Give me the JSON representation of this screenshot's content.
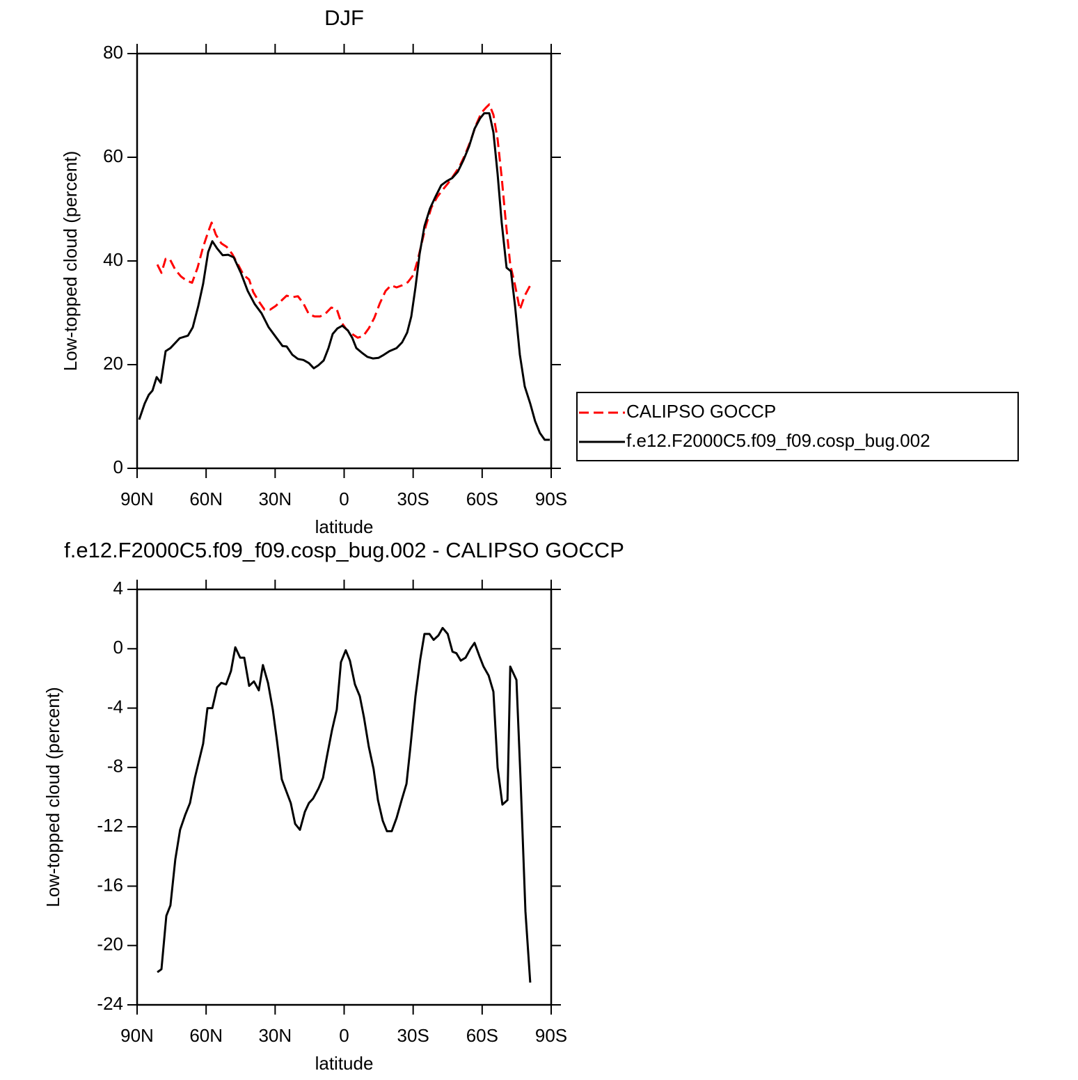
{
  "chart_data": [
    {
      "type": "line",
      "title": "DJF",
      "xlabel": "latitude",
      "ylabel": "Low-topped cloud (percent)",
      "xlim": [
        90,
        -90
      ],
      "xticks": [
        {
          "value": 90,
          "label": "90N"
        },
        {
          "value": 60,
          "label": "60N"
        },
        {
          "value": 30,
          "label": "30N"
        },
        0,
        {
          "value": -30,
          "label": "30S"
        },
        {
          "value": -60,
          "label": "60S"
        },
        {
          "value": -90,
          "label": "90S"
        }
      ],
      "ylim": [
        0,
        80
      ],
      "yticks": [
        0,
        20,
        40,
        60,
        80
      ],
      "legend": "right",
      "series": [
        {
          "name": "CALIPSO GOCCP",
          "color": "#ff0000",
          "line_style": "dashed",
          "x": [
            81.2,
            79.4,
            77.6,
            75.8,
            73.4,
            70.9,
            68.5,
            66.1,
            63.7,
            61.3,
            59.1,
            57.6,
            55.8,
            53.4,
            51.0,
            48.6,
            46.1,
            43.7,
            41.3,
            39.5,
            37.1,
            34.6,
            32.2,
            29.8,
            27.4,
            25.0,
            22.5,
            20.1,
            17.7,
            15.3,
            12.9,
            10.4,
            8.0,
            5.6,
            3.2,
            1.4,
            -1.0,
            -3.5,
            -5.9,
            -8.3,
            -10.7,
            -13.1,
            -15.5,
            -18.0,
            -20.4,
            -22.8,
            -25.2,
            -27.7,
            -30.1,
            -31.9,
            -33.7,
            -35.5,
            -37.9,
            -40.4,
            -42.8,
            -45.2,
            -47.6,
            -50.0,
            -52.5,
            -54.9,
            -57.3,
            -59.7,
            -61.5,
            -63.1,
            -64.9,
            -66.7,
            -68.5,
            -70.3,
            -72.2,
            -74.3,
            -76.4,
            -78.5,
            -80.9
          ],
          "values": [
            39.3,
            37.7,
            40.4,
            40.4,
            38.3,
            37.0,
            36.2,
            35.8,
            38.7,
            42.7,
            45.6,
            47.4,
            45.1,
            43.4,
            42.7,
            41.3,
            39.3,
            37.3,
            36.4,
            34.0,
            32.2,
            30.6,
            30.6,
            31.3,
            32.3,
            33.3,
            33.0,
            33.2,
            31.8,
            29.7,
            29.3,
            29.3,
            29.9,
            31.0,
            30.7,
            28.3,
            26.8,
            25.9,
            25.2,
            25.5,
            27.0,
            29.0,
            31.8,
            34.2,
            35.3,
            34.9,
            35.3,
            35.9,
            37.3,
            40.0,
            43.4,
            46.7,
            50.3,
            52.3,
            53.7,
            55.0,
            56.5,
            58.1,
            60.4,
            63.1,
            66.2,
            68.6,
            69.5,
            70.2,
            68.2,
            63.5,
            56.1,
            47.4,
            39.3,
            35.3,
            30.6,
            33.3,
            35.3
          ]
        },
        {
          "name": "f.e12.F2000C5.f09_f09.cosp_bug.002",
          "color": "#000000",
          "line_style": "solid",
          "x": [
            89.1,
            86.7,
            84.9,
            83.3,
            81.5,
            79.7,
            77.6,
            75.5,
            71.5,
            67.9,
            65.8,
            63.4,
            61.3,
            59.1,
            57.3,
            55.2,
            52.8,
            50.4,
            48.0,
            44.9,
            41.9,
            38.9,
            35.9,
            32.8,
            29.8,
            26.8,
            25.0,
            22.5,
            20.1,
            17.7,
            15.3,
            13.2,
            11.1,
            8.9,
            6.8,
            5.0,
            2.9,
            0.8,
            -1.6,
            -3.5,
            -5.3,
            -7.7,
            -10.1,
            -12.5,
            -14.9,
            -17.3,
            -19.7,
            -22.8,
            -25.2,
            -27.4,
            -29.2,
            -31.0,
            -32.8,
            -34.9,
            -37.3,
            -39.8,
            -42.2,
            -44.6,
            -47.0,
            -49.4,
            -51.9,
            -54.3,
            -56.7,
            -59.1,
            -60.9,
            -63.1,
            -64.9,
            -66.7,
            -68.5,
            -70.6,
            -72.5,
            -74.3,
            -76.4,
            -78.5,
            -80.9,
            -83.0,
            -85.1,
            -87.2,
            -89.4
          ],
          "values": [
            9.4,
            12.5,
            14.2,
            15.0,
            17.6,
            16.5,
            22.6,
            23.2,
            25.1,
            25.6,
            27.2,
            31.3,
            35.6,
            41.7,
            43.8,
            42.4,
            41.1,
            41.2,
            40.7,
            37.7,
            34.2,
            31.7,
            29.9,
            27.2,
            25.4,
            23.6,
            23.5,
            21.9,
            21.1,
            20.9,
            20.3,
            19.3,
            19.9,
            20.8,
            23.2,
            25.9,
            27.0,
            27.5,
            26.6,
            25.2,
            23.2,
            22.3,
            21.5,
            21.2,
            21.3,
            21.9,
            22.6,
            23.2,
            24.3,
            26.2,
            29.3,
            34.9,
            41.3,
            46.7,
            50.1,
            52.5,
            54.6,
            55.4,
            56.0,
            57.2,
            59.5,
            62.1,
            65.5,
            67.5,
            68.5,
            68.5,
            64.8,
            56.8,
            47.4,
            38.7,
            38.0,
            31.3,
            21.9,
            15.8,
            12.5,
            9.1,
            6.8,
            5.5,
            5.5
          ]
        }
      ]
    },
    {
      "type": "line",
      "title": "f.e12.F2000C5.f09_f09.cosp_bug.002 - CALIPSO GOCCP",
      "xlabel": "latitude",
      "ylabel": "Low-topped cloud (percent)",
      "xlim": [
        90,
        -90
      ],
      "xticks": [
        {
          "value": 90,
          "label": "90N"
        },
        {
          "value": 60,
          "label": "60N"
        },
        {
          "value": 30,
          "label": "30N"
        },
        0,
        {
          "value": -30,
          "label": "30S"
        },
        {
          "value": -60,
          "label": "60S"
        },
        {
          "value": -90,
          "label": "90S"
        }
      ],
      "ylim": [
        -24,
        4
      ],
      "yticks": [
        -24,
        -20,
        -16,
        -12,
        -8,
        -4,
        0,
        4
      ],
      "series": [
        {
          "color": "#000000",
          "line_style": "solid",
          "x": [
            81.2,
            79.4,
            77.3,
            75.5,
            73.4,
            71.3,
            69.1,
            67.0,
            64.9,
            61.3,
            59.4,
            57.3,
            55.2,
            53.4,
            51.3,
            49.2,
            47.3,
            45.2,
            43.4,
            41.3,
            39.2,
            37.1,
            35.3,
            33.1,
            31.0,
            29.2,
            27.1,
            23.2,
            21.3,
            19.2,
            17.1,
            15.3,
            13.5,
            11.1,
            9.2,
            7.4,
            5.3,
            3.2,
            1.4,
            -0.7,
            -2.5,
            -4.7,
            -6.8,
            -8.6,
            -10.7,
            -12.8,
            -14.7,
            -16.8,
            -18.6,
            -20.7,
            -22.8,
            -25.0,
            -27.1,
            -28.9,
            -31.0,
            -33.1,
            -34.9,
            -37.1,
            -38.9,
            -41.0,
            -42.8,
            -45.0,
            -47.1,
            -48.8,
            -50.7,
            -52.8,
            -54.9,
            -56.7,
            -58.8,
            -60.6,
            -62.8,
            -64.9,
            -66.7,
            -68.8,
            -71.0,
            -72.2,
            -74.9,
            -76.7,
            -78.8,
            -80.9
          ],
          "values": [
            -21.8,
            -21.6,
            -18.0,
            -17.3,
            -14.2,
            -12.2,
            -11.2,
            -10.4,
            -8.7,
            -6.4,
            -4.0,
            -4.0,
            -2.6,
            -2.3,
            -2.4,
            -1.5,
            0.1,
            -0.6,
            -0.6,
            -2.5,
            -2.2,
            -2.8,
            -1.1,
            -2.3,
            -4.1,
            -6.2,
            -8.8,
            -10.4,
            -11.8,
            -12.2,
            -11.0,
            -10.4,
            -10.1,
            -9.4,
            -8.7,
            -7.2,
            -5.5,
            -4.1,
            -0.9,
            -0.1,
            -0.8,
            -2.4,
            -3.2,
            -4.6,
            -6.6,
            -8.1,
            -10.2,
            -11.6,
            -12.3,
            -12.3,
            -11.4,
            -10.2,
            -9.1,
            -6.5,
            -3.2,
            -0.7,
            1.0,
            1.0,
            0.6,
            0.9,
            1.4,
            1.0,
            -0.2,
            -0.3,
            -0.8,
            -0.6,
            0.0,
            0.4,
            -0.5,
            -1.2,
            -1.8,
            -2.9,
            -8.0,
            -10.5,
            -10.2,
            -1.2,
            -2.1,
            -8.8,
            -17.7,
            -22.5
          ]
        }
      ]
    }
  ]
}
